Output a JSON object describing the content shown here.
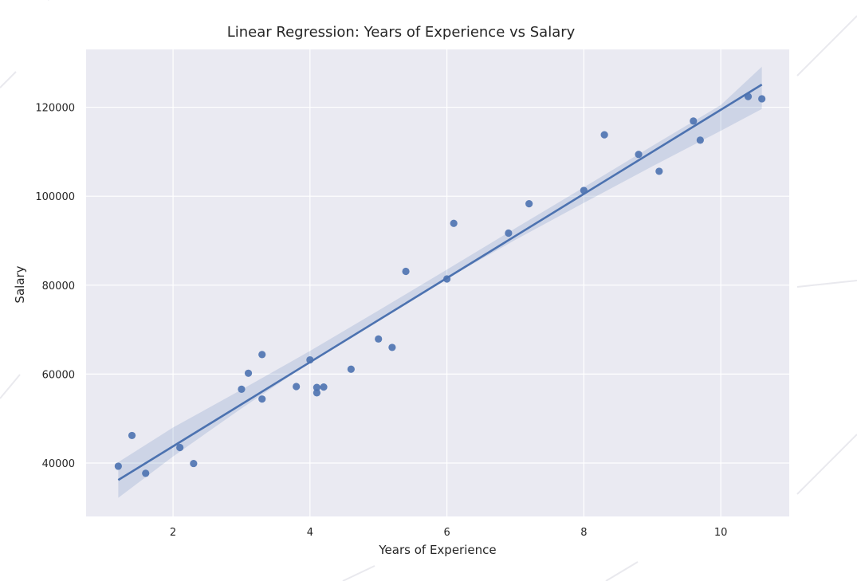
{
  "chart_data": {
    "type": "scatter",
    "title": "Linear Regression: Years of Experience vs Salary",
    "xlabel": "Years of Experience",
    "ylabel": "Salary",
    "xlim": [
      0.73,
      11.0
    ],
    "ylim": [
      28000,
      133000
    ],
    "xticks": [
      2,
      4,
      6,
      8,
      10
    ],
    "yticks": [
      40000,
      60000,
      80000,
      100000,
      120000
    ],
    "grid": true,
    "legend": "none",
    "colors": {
      "background": "#ffffff",
      "plot_bg": "#eaeaf2",
      "grid": "#ffffff",
      "points": "#4c72b0",
      "line": "#4c72b0",
      "band": "#c2cae0",
      "text": "#262626"
    },
    "series": [
      {
        "kind": "scatter",
        "x": [
          1.2,
          1.4,
          1.6,
          2.1,
          2.3,
          3.0,
          3.1,
          3.3,
          3.3,
          3.8,
          4.0,
          4.1,
          4.1,
          4.2,
          4.6,
          5.0,
          5.2,
          5.4,
          6.0,
          6.1,
          6.9,
          7.2,
          8.0,
          8.3,
          8.8,
          9.1,
          9.6,
          9.7,
          10.4,
          10.6
        ],
        "y": [
          39300,
          46200,
          37700,
          43500,
          39900,
          56600,
          60200,
          54400,
          64400,
          57200,
          63200,
          55800,
          57000,
          57100,
          61100,
          67900,
          66000,
          83100,
          81400,
          93900,
          91700,
          98300,
          101300,
          113800,
          109400,
          105600,
          116900,
          112600,
          122400,
          121900
        ]
      },
      {
        "kind": "regression_line",
        "x": [
          1.2,
          10.6
        ],
        "y": [
          36200,
          125100
        ]
      },
      {
        "kind": "confidence_band",
        "x": [
          1.2,
          2.0,
          3.0,
          4.0,
          5.0,
          6.0,
          7.0,
          8.0,
          9.0,
          10.0,
          10.6
        ],
        "lower": [
          32200,
          41500,
          52300,
          62600,
          72300,
          81500,
          90200,
          98500,
          106700,
          114700,
          119600
        ],
        "upper": [
          40200,
          48000,
          56500,
          65200,
          74300,
          83500,
          92800,
          102000,
          111300,
          120500,
          129100
        ]
      }
    ]
  }
}
